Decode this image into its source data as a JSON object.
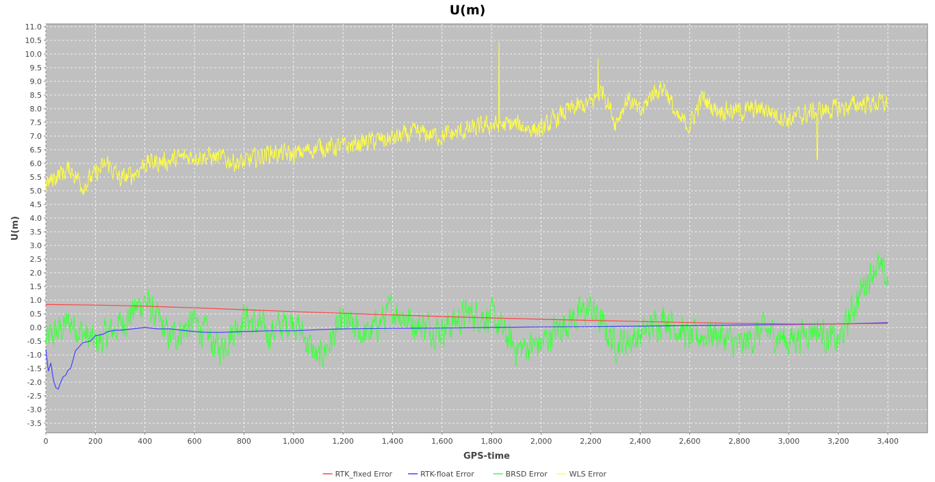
{
  "chart_data": {
    "type": "line",
    "title": "U(m)",
    "xlabel": "GPS-time",
    "ylabel": "U(m)",
    "xlim": [
      0,
      3560
    ],
    "ylim": [
      -3.85,
      11.1
    ],
    "x_ticks": [
      0,
      200,
      400,
      600,
      800,
      1000,
      1200,
      1400,
      1600,
      1800,
      2000,
      2200,
      2400,
      2600,
      2800,
      3000,
      3200,
      3400
    ],
    "x_tick_labels": [
      "0",
      "200",
      "400",
      "600",
      "800",
      "1,000",
      "1,200",
      "1,400",
      "1,600",
      "1,800",
      "2,000",
      "2,200",
      "2,400",
      "2,600",
      "2,800",
      "3,000",
      "3,200",
      "3,400"
    ],
    "y_ticks": [
      -3.5,
      -3.0,
      -2.5,
      -2.0,
      -1.5,
      -1.0,
      -0.5,
      0.0,
      0.5,
      1.0,
      1.5,
      2.0,
      2.5,
      3.0,
      3.5,
      4.0,
      4.5,
      5.0,
      5.5,
      6.0,
      6.5,
      7.0,
      7.5,
      8.0,
      8.5,
      9.0,
      9.5,
      10.0,
      10.5,
      11.0
    ],
    "y_tick_labels": [
      "-3.5",
      "-3.0",
      "-2.5",
      "-2.0",
      "-1.5",
      "-1.0",
      "-0.5",
      "0.0",
      "0.5",
      "1.0",
      "1.5",
      "2.0",
      "2.5",
      "3.0",
      "3.5",
      "4.0",
      "4.5",
      "5.0",
      "5.5",
      "6.0",
      "6.5",
      "7.0",
      "7.5",
      "8.0",
      "8.5",
      "9.0",
      "9.5",
      "10.0",
      "10.5",
      "11.0"
    ],
    "grid": true,
    "legend_position": "bottom",
    "plot_background": "#c0c0c0",
    "series": [
      {
        "name": "RTK_fixed Error",
        "color": "#ff4040",
        "x": [
          0,
          200,
          400,
          600,
          800,
          1000,
          1200,
          1400,
          1600,
          1800,
          2000,
          2200,
          2400,
          2600,
          2800,
          3000,
          3200,
          3400
        ],
        "y": [
          0.84,
          0.82,
          0.78,
          0.72,
          0.65,
          0.58,
          0.52,
          0.46,
          0.4,
          0.35,
          0.3,
          0.26,
          0.22,
          0.18,
          0.15,
          0.13,
          0.13,
          0.15
        ]
      },
      {
        "name": "RTK-float Error",
        "color": "#4040ff",
        "x": [
          0,
          10,
          20,
          30,
          40,
          50,
          60,
          70,
          80,
          90,
          100,
          120,
          150,
          180,
          200,
          230,
          250,
          280,
          300,
          350,
          400,
          450,
          500,
          550,
          600,
          650,
          700,
          800,
          900,
          1000,
          1100,
          1200,
          1400,
          1600,
          1800,
          2000,
          2200,
          2400,
          2600,
          2800,
          3000,
          3200,
          3300,
          3400
        ],
        "y": [
          -0.8,
          -1.6,
          -1.3,
          -1.9,
          -2.2,
          -2.25,
          -2.0,
          -1.8,
          -1.75,
          -1.55,
          -1.5,
          -0.85,
          -0.55,
          -0.5,
          -0.3,
          -0.25,
          -0.15,
          -0.1,
          -0.1,
          -0.05,
          0.0,
          -0.05,
          -0.05,
          -0.1,
          -0.15,
          -0.18,
          -0.18,
          -0.15,
          -0.12,
          -0.12,
          -0.08,
          -0.05,
          -0.03,
          -0.02,
          0.0,
          0.02,
          0.03,
          0.05,
          0.07,
          0.09,
          0.11,
          0.13,
          0.15,
          0.18
        ]
      },
      {
        "name": "BRSD Error",
        "color": "#40ff40",
        "x": [
          0,
          100,
          200,
          300,
          400,
          500,
          600,
          700,
          800,
          900,
          1000,
          1100,
          1200,
          1300,
          1400,
          1500,
          1600,
          1700,
          1800,
          1900,
          2000,
          2100,
          2200,
          2300,
          2400,
          2500,
          2600,
          2700,
          2800,
          2900,
          3000,
          3100,
          3200,
          3250,
          3300,
          3350,
          3400
        ],
        "y": [
          -0.5,
          0.2,
          -0.6,
          0.1,
          1.0,
          -0.4,
          0.2,
          -0.8,
          0.4,
          -0.2,
          0.3,
          -1.2,
          0.2,
          -0.3,
          0.7,
          0.1,
          -0.1,
          0.5,
          0.4,
          -0.8,
          -0.6,
          0.2,
          0.7,
          -0.6,
          -0.3,
          0.4,
          -0.4,
          -0.2,
          -0.7,
          -0.1,
          -0.5,
          0.0,
          -0.6,
          0.5,
          1.5,
          2.3,
          1.7
        ],
        "noise_amplitude": 0.9
      },
      {
        "name": "WLS Error",
        "color": "#ffff40",
        "x": [
          0,
          50,
          100,
          150,
          200,
          250,
          300,
          350,
          400,
          500,
          600,
          700,
          800,
          900,
          1000,
          1100,
          1200,
          1300,
          1400,
          1500,
          1600,
          1700,
          1800,
          1900,
          2000,
          2100,
          2200,
          2250,
          2300,
          2350,
          2400,
          2450,
          2500,
          2550,
          2600,
          2650,
          2700,
          2800,
          2900,
          3000,
          3100,
          3200,
          3300,
          3400
        ],
        "y": [
          5.2,
          5.6,
          5.8,
          5.2,
          5.6,
          6.0,
          5.4,
          5.6,
          6.0,
          6.1,
          6.3,
          6.2,
          6.0,
          6.4,
          6.3,
          6.6,
          6.6,
          6.8,
          6.9,
          7.1,
          7.0,
          7.2,
          7.4,
          7.4,
          7.2,
          7.9,
          8.2,
          8.7,
          7.5,
          8.4,
          7.8,
          8.6,
          8.8,
          7.6,
          7.4,
          8.4,
          8.0,
          7.9,
          8.0,
          7.6,
          7.9,
          8.0,
          8.2,
          8.2
        ],
        "noise_amplitude": 0.55,
        "spikes": [
          {
            "x": 1830,
            "y": 10.45
          },
          {
            "x": 2230,
            "y": 9.85
          },
          {
            "x": 3115,
            "y": 6.15
          }
        ]
      }
    ]
  }
}
